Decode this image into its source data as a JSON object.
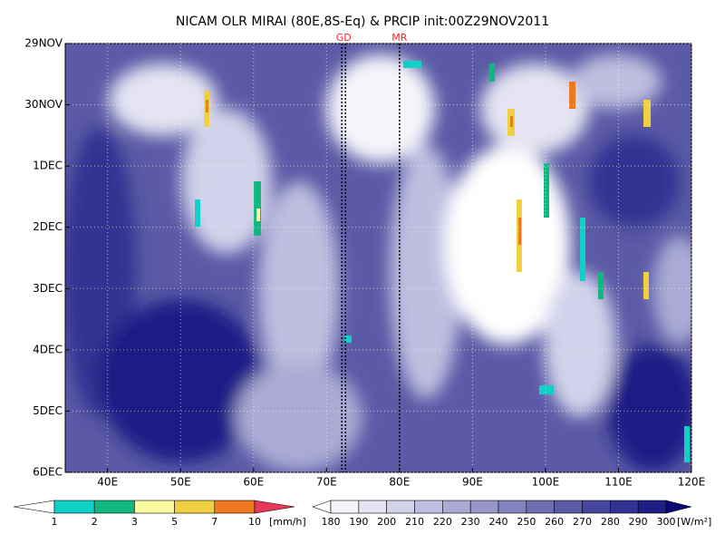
{
  "chart_data": {
    "type": "hovmoller",
    "title": "NICAM OLR MIRAI (80E,8S-Eq) & PRCIP init:00Z29NOV2011",
    "xlim": [
      34.2,
      120
    ],
    "xticks": [
      {
        "value": 40,
        "label": "40E"
      },
      {
        "value": 50,
        "label": "50E"
      },
      {
        "value": 60,
        "label": "60E"
      },
      {
        "value": 70,
        "label": "70E"
      },
      {
        "value": 80,
        "label": "80E"
      },
      {
        "value": 90,
        "label": "90E"
      },
      {
        "value": 100,
        "label": "100E"
      },
      {
        "value": 110,
        "label": "110E"
      },
      {
        "value": 120,
        "label": "120E"
      }
    ],
    "ylim": [
      0,
      7
    ],
    "yticks": [
      {
        "value": 0,
        "label": "29NOV"
      },
      {
        "value": 1,
        "label": "30NOV"
      },
      {
        "value": 2,
        "label": "1DEC"
      },
      {
        "value": 3,
        "label": "2DEC"
      },
      {
        "value": 4,
        "label": "3DEC"
      },
      {
        "value": 5,
        "label": "4DEC"
      },
      {
        "value": 6,
        "label": "5DEC"
      },
      {
        "value": 7,
        "label": "6DEC"
      }
    ],
    "grid": true,
    "markers": [
      {
        "label": "GD",
        "x": [
          72.1,
          72.6
        ],
        "color": "#ff2020"
      },
      {
        "label": "MR",
        "x": [
          80
        ],
        "color": "#ff2020"
      }
    ],
    "colorbars": [
      {
        "units": "[mm/h]",
        "levels": [
          1,
          2,
          3,
          5,
          7,
          10
        ],
        "colors": [
          "#ffffff",
          "#10d0c8",
          "#10b880",
          "#fafaa0",
          "#f0d040",
          "#f07820",
          "#e8385a"
        ]
      },
      {
        "units": "[W/m²]",
        "levels": [
          180,
          190,
          200,
          210,
          220,
          230,
          240,
          250,
          260,
          270,
          280,
          290,
          300
        ],
        "colors": [
          "#ffffff",
          "#f4f4fa",
          "#e4e4f2",
          "#d2d2ea",
          "#bebee0",
          "#aaaad4",
          "#9696c8",
          "#8282bc",
          "#6e6eb0",
          "#5a5aa6",
          "#46469c",
          "#323292",
          "#1e1e86",
          "#0a0a70"
        ]
      }
    ]
  }
}
